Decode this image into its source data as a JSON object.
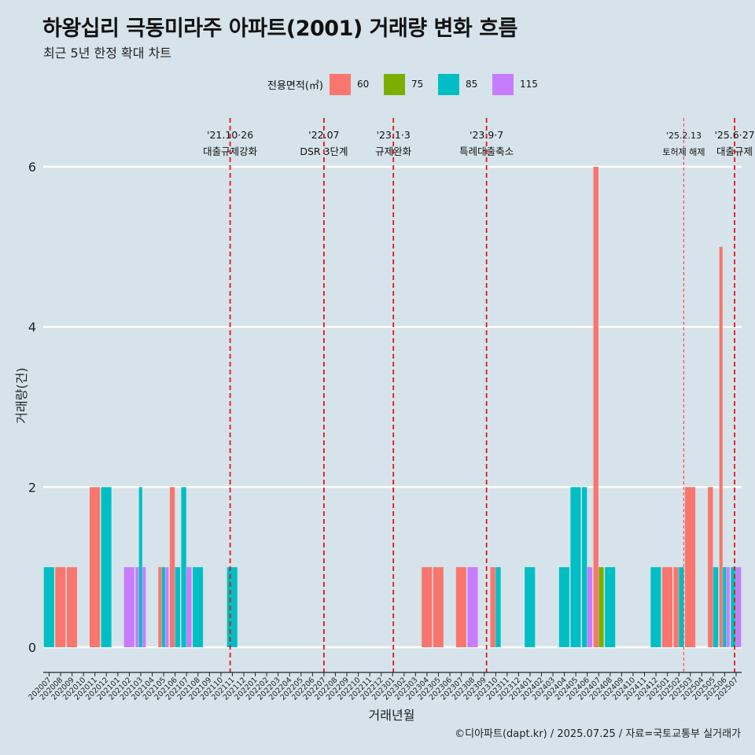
{
  "header": {
    "title": "하왕십리 극동미라주 아파트(2001) 거래량 변화 흐름",
    "subtitle": "최근 5년 한정 확대 차트"
  },
  "caption": "©디아파트(dapt.kr) / 2025.07.25 / 자료=국토교통부 실거래가",
  "legend": {
    "title": "전용면적(㎡)",
    "items": [
      {
        "label": "60",
        "color": "#f8766d"
      },
      {
        "label": "75",
        "color": "#7cae00"
      },
      {
        "label": "85",
        "color": "#00bfc4"
      },
      {
        "label": "115",
        "color": "#c77cff"
      }
    ]
  },
  "chart_data": {
    "type": "bar",
    "xlabel": "거래년월",
    "ylabel": "거래량(건)",
    "ylim": [
      0,
      6.6
    ],
    "yticks": [
      0,
      2,
      4,
      6
    ],
    "grid": true,
    "legend_position": "top",
    "categories": [
      "202007",
      "202008",
      "202009",
      "202010",
      "202011",
      "202012",
      "202101",
      "202102",
      "202103",
      "202104",
      "202105",
      "202106",
      "202107",
      "202108",
      "202109",
      "202110",
      "202111",
      "202112",
      "202201",
      "202202",
      "202203",
      "202204",
      "202205",
      "202206",
      "202207",
      "202208",
      "202209",
      "202210",
      "202211",
      "202212",
      "202301",
      "202302",
      "202303",
      "202304",
      "202305",
      "202306",
      "202307",
      "202308",
      "202309",
      "202310",
      "202311",
      "202312",
      "202401",
      "202402",
      "202403",
      "202404",
      "202405",
      "202406",
      "202407",
      "202408",
      "202409",
      "202410",
      "202411",
      "202412",
      "202501",
      "202502",
      "202503",
      "202504",
      "202505",
      "202506",
      "202507"
    ],
    "series_order": [
      "60",
      "75",
      "85",
      "115"
    ],
    "bars": [
      {
        "ym": "202007",
        "segments": [
          {
            "series": "85",
            "value": 1
          }
        ]
      },
      {
        "ym": "202008",
        "segments": [
          {
            "series": "60",
            "value": 1
          }
        ]
      },
      {
        "ym": "202009",
        "segments": [
          {
            "series": "60",
            "value": 1
          }
        ]
      },
      {
        "ym": "202011",
        "segments": [
          {
            "series": "60",
            "value": 2
          }
        ]
      },
      {
        "ym": "202012",
        "segments": [
          {
            "series": "85",
            "value": 2
          }
        ]
      },
      {
        "ym": "202102",
        "segments": [
          {
            "series": "115",
            "value": 1
          }
        ]
      },
      {
        "ym": "202103",
        "segments": [
          {
            "series": "115",
            "value": 1
          },
          {
            "series": "85",
            "value": 2
          },
          {
            "series": "115",
            "value": 1
          }
        ]
      },
      {
        "ym": "202105",
        "segments": [
          {
            "series": "60",
            "value": 1
          },
          {
            "series": "85",
            "value": 1
          },
          {
            "series": "115",
            "value": 1
          }
        ]
      },
      {
        "ym": "202106",
        "segments": [
          {
            "series": "60",
            "value": 2
          },
          {
            "series": "85",
            "value": 1
          }
        ]
      },
      {
        "ym": "202107",
        "segments": [
          {
            "series": "85",
            "value": 2
          },
          {
            "series": "115",
            "value": 1
          }
        ]
      },
      {
        "ym": "202108",
        "segments": [
          {
            "series": "85",
            "value": 1
          }
        ]
      },
      {
        "ym": "202111",
        "segments": [
          {
            "series": "85",
            "value": 1
          }
        ]
      },
      {
        "ym": "202304",
        "segments": [
          {
            "series": "60",
            "value": 1
          }
        ]
      },
      {
        "ym": "202305",
        "segments": [
          {
            "series": "60",
            "value": 1
          }
        ]
      },
      {
        "ym": "202307",
        "segments": [
          {
            "series": "60",
            "value": 1
          }
        ]
      },
      {
        "ym": "202308",
        "segments": [
          {
            "series": "115",
            "value": 1
          }
        ]
      },
      {
        "ym": "202310",
        "segments": [
          {
            "series": "60",
            "value": 1
          },
          {
            "series": "85",
            "value": 1
          }
        ]
      },
      {
        "ym": "202401",
        "segments": [
          {
            "series": "85",
            "value": 1
          }
        ]
      },
      {
        "ym": "202404",
        "segments": [
          {
            "series": "85",
            "value": 1
          }
        ]
      },
      {
        "ym": "202405",
        "segments": [
          {
            "series": "85",
            "value": 2
          }
        ]
      },
      {
        "ym": "202406",
        "segments": [
          {
            "series": "85",
            "value": 2
          },
          {
            "series": "115",
            "value": 1
          }
        ]
      },
      {
        "ym": "202407",
        "segments": [
          {
            "series": "60",
            "value": 6
          },
          {
            "series": "75",
            "value": 1
          }
        ]
      },
      {
        "ym": "202408",
        "segments": [
          {
            "series": "85",
            "value": 1
          }
        ]
      },
      {
        "ym": "202412",
        "segments": [
          {
            "series": "85",
            "value": 1
          }
        ]
      },
      {
        "ym": "202501",
        "segments": [
          {
            "series": "60",
            "value": 1
          }
        ]
      },
      {
        "ym": "202502",
        "segments": [
          {
            "series": "60",
            "value": 1
          },
          {
            "series": "85",
            "value": 1
          }
        ]
      },
      {
        "ym": "202503",
        "segments": [
          {
            "series": "60",
            "value": 2
          }
        ]
      },
      {
        "ym": "202505",
        "segments": [
          {
            "series": "60",
            "value": 2
          },
          {
            "series": "85",
            "value": 1
          }
        ]
      },
      {
        "ym": "202506",
        "segments": [
          {
            "series": "60",
            "value": 5
          },
          {
            "series": "85",
            "value": 1
          },
          {
            "series": "115",
            "value": 1
          }
        ]
      },
      {
        "ym": "202507",
        "segments": [
          {
            "series": "85",
            "value": 1
          },
          {
            "series": "115",
            "value": 1
          }
        ]
      }
    ],
    "events": [
      {
        "date": "2021-10-26",
        "label1": "'21.10·26",
        "label2": "대출규제강화",
        "style": "dashed"
      },
      {
        "date": "2022-07",
        "label1": "'22.07",
        "label2": "DSR 3단계",
        "style": "dashed"
      },
      {
        "date": "2023-01-03",
        "label1": "'23.1·3",
        "label2": "규제완화",
        "style": "dashed"
      },
      {
        "date": "2023-09-07",
        "label1": "'23.9·7",
        "label2": "특례대출축소",
        "style": "dashed"
      },
      {
        "date": "2025-02-13",
        "label1": "'25.2.13",
        "label2": "토허제 해제",
        "style": "dashed-thin"
      },
      {
        "date": "2025-06-27",
        "label1": "'25.6·27",
        "label2": "대출규제",
        "style": "dashed"
      }
    ]
  }
}
